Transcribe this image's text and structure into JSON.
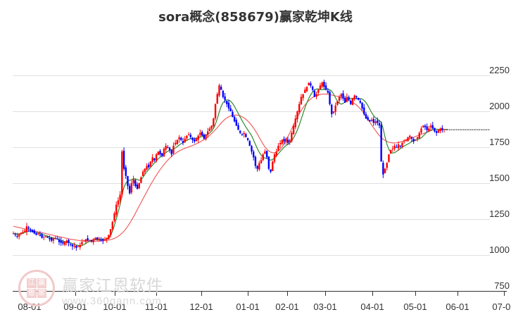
{
  "title": "sora概念(858679)赢家乾坤K线",
  "watermark": {
    "logo_chars": [
      "江",
      "赢",
      "恩",
      "家"
    ],
    "name": "赢家江恩软件",
    "url": "www.360gann.com"
  },
  "colors": {
    "up_candle": "#FF0000",
    "down_candle": "#0000FF",
    "neutral_candle": "#800080",
    "ma_short": "#2E8B2E",
    "ma_long": "#F06060",
    "gridline": "#E0E0E0",
    "axis": "#333333",
    "last_price_line": "#000000"
  },
  "chart_data": {
    "type": "candlestick",
    "title": "sora概念(858679)赢家乾坤K线",
    "xlabel": "",
    "ylabel": "",
    "ylim": [
      750,
      2300
    ],
    "y_ticks": [
      2250,
      2000,
      1750,
      1500,
      1250,
      1000,
      750
    ],
    "x_ticks": [
      "08-01",
      "09-01",
      "10-01",
      "11-01",
      "12-01",
      "01-01",
      "02-01",
      "03-01",
      "04-01",
      "05-01",
      "06-01",
      "07-01"
    ],
    "grid": {
      "horizontal": true,
      "vertical": false
    },
    "legend": null,
    "series": [
      {
        "name": "candles",
        "type": "ohlc",
        "description": "Daily OHLC candles, red=up, blue=down, purple=reversal/neutral"
      },
      {
        "name": "short MA",
        "type": "line",
        "color": "green"
      },
      {
        "name": "long MA",
        "type": "line",
        "color": "red"
      }
    ],
    "closes": [
      1150,
      1140,
      1130,
      1145,
      1155,
      1160,
      1170,
      1200,
      1185,
      1170,
      1160,
      1150,
      1140,
      1150,
      1135,
      1120,
      1125,
      1130,
      1120,
      1110,
      1100,
      1115,
      1120,
      1110,
      1090,
      1085,
      1080,
      1090,
      1100,
      1085,
      1075,
      1060,
      1065,
      1050,
      1060,
      1070,
      1090,
      1100,
      1110,
      1100,
      1105,
      1095,
      1110,
      1120,
      1110,
      1115,
      1105,
      1100,
      1110,
      1120,
      1140,
      1180,
      1230,
      1290,
      1350,
      1380,
      1420,
      1720,
      1600,
      1550,
      1480,
      1430,
      1500,
      1530,
      1480,
      1460,
      1500,
      1540,
      1580,
      1600,
      1620,
      1610,
      1650,
      1680,
      1660,
      1700,
      1720,
      1700,
      1690,
      1740,
      1760,
      1750,
      1730,
      1700,
      1760,
      1780,
      1800,
      1820,
      1800,
      1780,
      1810,
      1830,
      1840,
      1820,
      1800,
      1790,
      1810,
      1830,
      1850,
      1830,
      1810,
      1840,
      1860,
      1880,
      1900,
      1950,
      2050,
      2120,
      2180,
      2150,
      2100,
      2080,
      2050,
      2020,
      2000,
      1960,
      1930,
      1900,
      1870,
      1850,
      1840,
      1850,
      1820,
      1800,
      1760,
      1720,
      1680,
      1620,
      1600,
      1640,
      1660,
      1700,
      1720,
      1680,
      1600,
      1580,
      1650,
      1700,
      1720,
      1760,
      1780,
      1800,
      1790,
      1810,
      1780,
      1800,
      1850,
      1900,
      1950,
      2000,
      2050,
      2100,
      2120,
      2150,
      2170,
      2200,
      2180,
      2150,
      2100,
      2120,
      2150,
      2180,
      2200,
      2170,
      2150,
      2130,
      2050,
      1980,
      2000,
      2040,
      2070,
      2100,
      2120,
      2090,
      2060,
      2100,
      2080,
      2050,
      2090,
      2110,
      2100,
      2080,
      2060,
      2020,
      1980,
      1950,
      1940,
      1930,
      1940,
      1920,
      1930,
      1920,
      1900,
      1650,
      1560,
      1600,
      1640,
      1700,
      1730,
      1740,
      1760,
      1750,
      1770,
      1760,
      1780,
      1790,
      1800,
      1820,
      1830,
      1810,
      1790,
      1800,
      1820,
      1850,
      1880,
      1900,
      1890,
      1870,
      1880,
      1900,
      1880,
      1860,
      1850,
      1870,
      1880,
      1870,
      1875
    ],
    "ma_short": [
      1150,
      1148,
      1146,
      1146,
      1148,
      1152,
      1156,
      1162,
      1165,
      1165,
      1163,
      1160,
      1157,
      1154,
      1150,
      1145,
      1140,
      1136,
      1132,
      1126,
      1120,
      1116,
      1114,
      1112,
      1108,
      1102,
      1096,
      1092,
      1090,
      1088,
      1085,
      1080,
      1075,
      1070,
      1066,
      1064,
      1066,
      1072,
      1080,
      1088,
      1095,
      1100,
      1103,
      1106,
      1108,
      1110,
      1110,
      1109,
      1108,
      1110,
      1118,
      1135,
      1165,
      1205,
      1250,
      1300,
      1350,
      1420,
      1470,
      1500,
      1515,
      1520,
      1525,
      1530,
      1530,
      1525,
      1520,
      1525,
      1540,
      1560,
      1580,
      1595,
      1610,
      1625,
      1640,
      1655,
      1670,
      1680,
      1690,
      1700,
      1712,
      1722,
      1730,
      1733,
      1738,
      1745,
      1755,
      1765,
      1775,
      1782,
      1790,
      1798,
      1805,
      1810,
      1812,
      1812,
      1812,
      1815,
      1820,
      1825,
      1828,
      1832,
      1840,
      1850,
      1862,
      1880,
      1910,
      1950,
      1995,
      2035,
      2060,
      2075,
      2080,
      2078,
      2070,
      2055,
      2035,
      2010,
      1985,
      1960,
      1935,
      1912,
      1890,
      1870,
      1850,
      1830,
      1800,
      1770,
      1740,
      1715,
      1695,
      1680,
      1675,
      1672,
      1665,
      1660,
      1665,
      1675,
      1690,
      1705,
      1720,
      1735,
      1750,
      1762,
      1770,
      1780,
      1795,
      1815,
      1840,
      1870,
      1905,
      1945,
      1985,
      2025,
      2060,
      2090,
      2115,
      2135,
      2148,
      2155,
      2155,
      2150,
      2150,
      2152,
      2155,
      2155,
      2150,
      2140,
      2120,
      2095,
      2070,
      2055,
      2050,
      2055,
      2065,
      2075,
      2085,
      2090,
      2090,
      2090,
      2090,
      2090,
      2088,
      2085,
      2075,
      2060,
      2040,
      2015,
      1990,
      1970,
      1955,
      1945,
      1935,
      1925,
      1880,
      1820,
      1770,
      1735,
      1715,
      1710,
      1712,
      1720,
      1730,
      1740,
      1750,
      1758,
      1765,
      1772,
      1780,
      1790,
      1798,
      1802,
      1805,
      1808,
      1815,
      1828,
      1842,
      1855,
      1862,
      1868,
      1872,
      1875,
      1876,
      1874,
      1872,
      1872,
      1873,
      1873,
      1873
    ],
    "ma_long": [
      1200,
      1197,
      1194,
      1191,
      1188,
      1185,
      1182,
      1179,
      1176,
      1173,
      1170,
      1167,
      1164,
      1161,
      1158,
      1155,
      1152,
      1149,
      1146,
      1143,
      1140,
      1137,
      1134,
      1131,
      1128,
      1125,
      1122,
      1119,
      1116,
      1113,
      1110,
      1108,
      1106,
      1104,
      1102,
      1100,
      1099,
      1098,
      1097,
      1096,
      1095,
      1095,
      1095,
      1095,
      1096,
      1097,
      1098,
      1099,
      1100,
      1102,
      1104,
      1107,
      1111,
      1116,
      1122,
      1130,
      1140,
      1152,
      1166,
      1182,
      1200,
      1220,
      1242,
      1265,
      1290,
      1315,
      1340,
      1365,
      1390,
      1415,
      1440,
      1465,
      1490,
      1512,
      1534,
      1555,
      1575,
      1594,
      1612,
      1629,
      1645,
      1660,
      1674,
      1686,
      1697,
      1707,
      1716,
      1724,
      1731,
      1737,
      1742,
      1747,
      1752,
      1757,
      1762,
      1768,
      1774,
      1780,
      1787,
      1795,
      1803,
      1812,
      1822,
      1833,
      1845,
      1858,
      1872,
      1887,
      1903,
      1918,
      1932,
      1944,
      1954,
      1962,
      1968,
      1972,
      1974,
      1974,
      1972,
      1968,
      1962,
      1954,
      1944,
      1932,
      1918,
      1902,
      1884,
      1864,
      1842,
      1818,
      1795,
      1772,
      1752,
      1736,
      1724,
      1716,
      1712,
      1712,
      1716,
      1724,
      1736,
      1752,
      1772,
      1796,
      1822,
      1850,
      1878,
      1906,
      1934,
      1960,
      1984,
      2006,
      2026,
      2044,
      2060,
      2074,
      2086,
      2096,
      2104,
      2110,
      2114,
      2117,
      2119,
      2120,
      2120,
      2118,
      2116,
      2113,
      2110,
      2107,
      2104,
      2100,
      2096,
      2092,
      2087,
      2082,
      2076,
      2070,
      2062,
      2054,
      2044,
      2032,
      2018,
      2002,
      1984,
      1965,
      1945,
      1925,
      1905,
      1885,
      1866,
      1848,
      1832,
      1818,
      1806,
      1797,
      1790,
      1785,
      1782,
      1780,
      1780,
      1781,
      1783,
      1786,
      1790,
      1795,
      1800,
      1805,
      1810,
      1815,
      1820,
      1825,
      1830,
      1835,
      1840,
      1845,
      1850,
      1855,
      1860,
      1865,
      1870
    ],
    "last_price_line": 1872,
    "notable_points": {
      "high_dec": 2220,
      "high_feb": 2230,
      "low_aug": 1040,
      "spike_oct": 1720,
      "low_jan": 1540,
      "low_apr": 1500
    }
  }
}
